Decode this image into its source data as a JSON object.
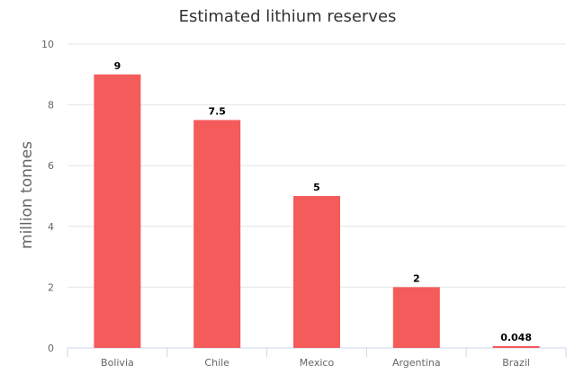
{
  "chart_data": {
    "type": "bar",
    "title": "Estimated lithium reserves",
    "xlabel": "",
    "ylabel": "million tonnes",
    "categories": [
      "Bolivia",
      "Chile",
      "Mexico",
      "Argentina",
      "Brazil"
    ],
    "values": [
      9,
      7.5,
      5,
      2,
      0.048
    ],
    "value_labels": [
      "9",
      "7.5",
      "5",
      "2",
      "0.048"
    ],
    "ylim": [
      0,
      10
    ],
    "y_ticks": [
      0,
      2,
      4,
      6,
      8,
      10
    ],
    "grid": true,
    "legend": "none",
    "colors": {
      "bar": "#f45b5b",
      "grid": "#e6e6e6",
      "axis": "#ccd6eb"
    }
  }
}
